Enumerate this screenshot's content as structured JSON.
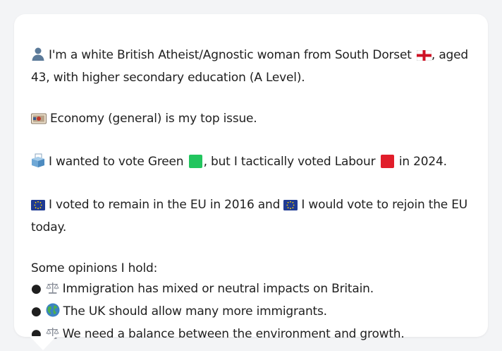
{
  "profile": {
    "part1": "I'm a white British Atheist/Agnostic woman from South Dorset",
    "part2": ", aged 43, with higher secondary education (A Level).",
    "icons": {
      "person": "person-silhouette-icon",
      "flag": "england-flag-icon"
    }
  },
  "issue": {
    "text": "Economy (general) is my top issue.",
    "icon": "money-note-icon"
  },
  "vote": {
    "part1": "I wanted to vote Green",
    "part2": ", but I tactically voted Labour",
    "part3": "in 2024.",
    "icons": {
      "ballot": "ballot-box-icon"
    },
    "colors": {
      "green": "#22c55e",
      "labour": "#e11d2a"
    }
  },
  "eu": {
    "part1": "I voted to remain in the EU in 2016 and",
    "part2": "I would vote to rejoin the EU today.",
    "icon": "eu-flag-icon"
  },
  "opinions": {
    "heading": "Some opinions I hold:",
    "items": [
      {
        "icon": "balance-scale-icon",
        "text": "Immigration has mixed or neutral impacts on Britain."
      },
      {
        "icon": "globe-icon",
        "text": "The UK should allow many more immigrants."
      },
      {
        "icon": "balance-scale-icon",
        "text": "We need a balance between the environment and growth."
      }
    ]
  }
}
